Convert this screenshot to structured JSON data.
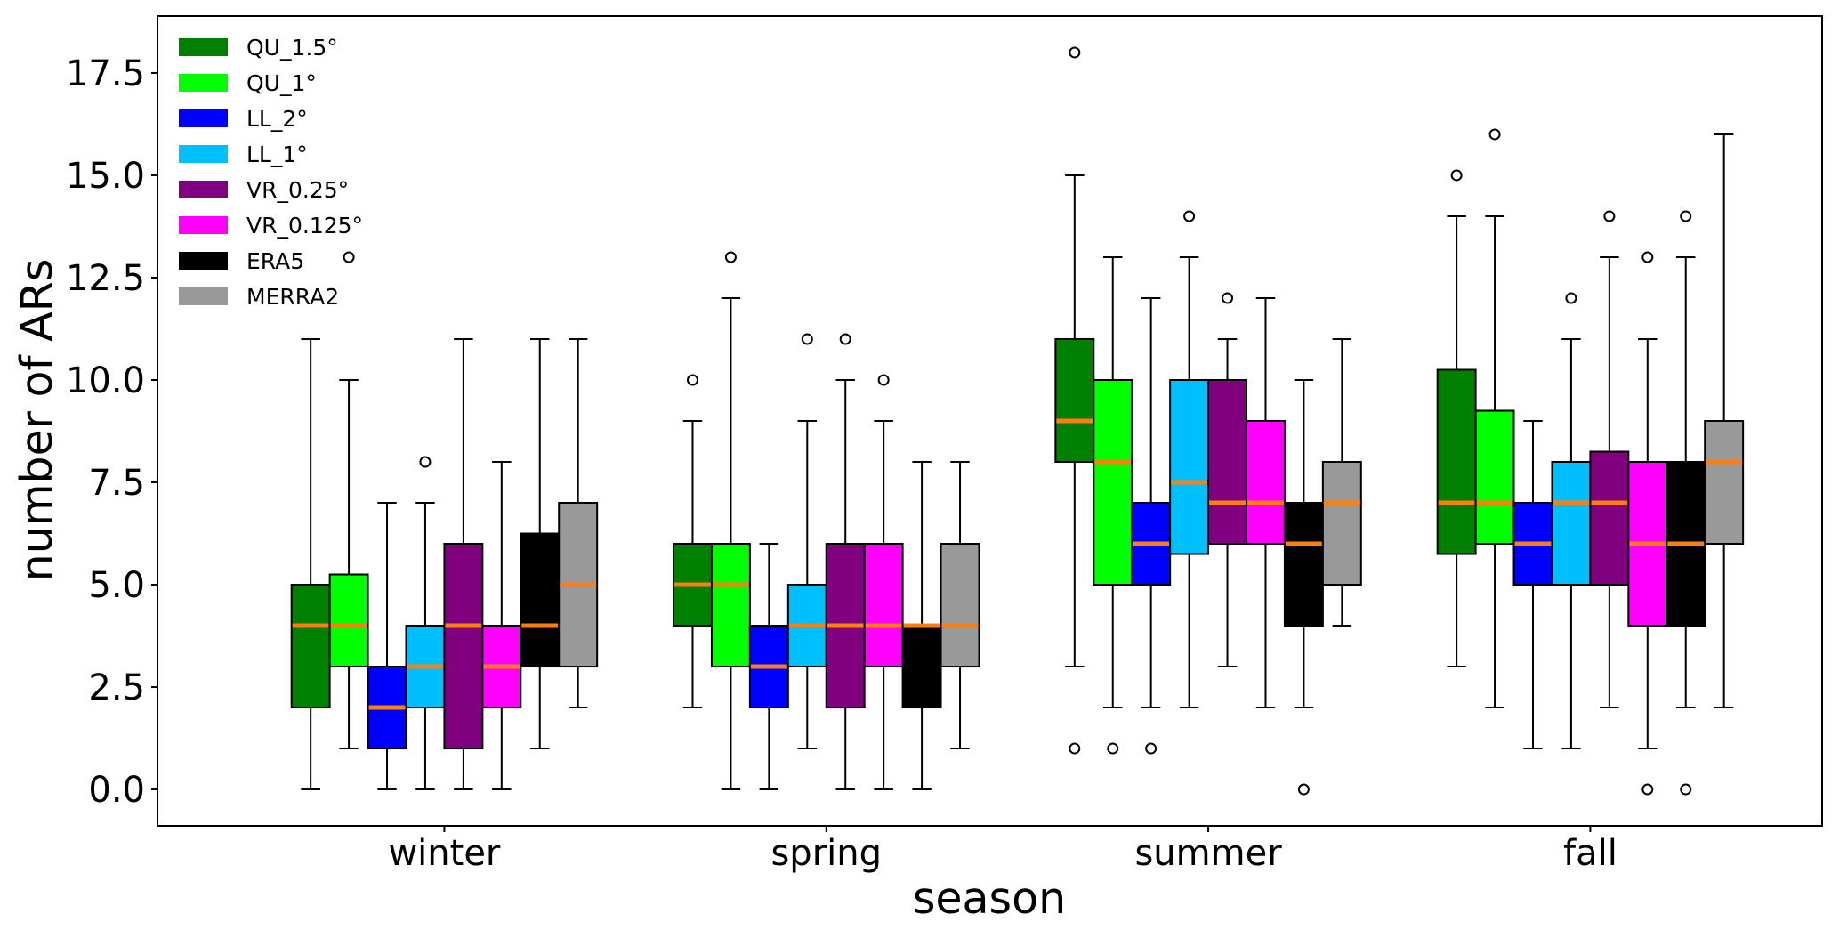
{
  "chart_data": {
    "type": "boxplot",
    "title": "",
    "xlabel": "season",
    "ylabel": "number of ARs",
    "categories": [
      "winter",
      "spring",
      "summer",
      "fall"
    ],
    "ylim": [
      -0.89,
      18.89
    ],
    "xlim": [
      -0.751,
      3.607
    ],
    "yticks": [
      0.0,
      2.5,
      5.0,
      7.5,
      10.0,
      12.5,
      15.0,
      17.5
    ],
    "ytick_labels": [
      "0.0",
      "2.5",
      "5.0",
      "7.5",
      "10.0",
      "12.5",
      "15.0",
      "17.5"
    ],
    "grid": false,
    "legend_position": "top-left",
    "median_color": "#ff7f0e",
    "series": [
      {
        "name": "QU_1.5°",
        "color": "#008000",
        "boxes": [
          {
            "whislo": 0,
            "q1": 2,
            "med": 4,
            "q3": 5,
            "whishi": 11,
            "fliers": []
          },
          {
            "whislo": 2,
            "q1": 4,
            "med": 5,
            "q3": 6,
            "whishi": 9,
            "fliers": [
              10
            ]
          },
          {
            "whislo": 3,
            "q1": 8,
            "med": 9,
            "q3": 11,
            "whishi": 15,
            "fliers": [
              18,
              1
            ]
          },
          {
            "whislo": 3,
            "q1": 5.75,
            "med": 7,
            "q3": 10.25,
            "whishi": 14,
            "fliers": [
              15
            ]
          }
        ]
      },
      {
        "name": "QU_1°",
        "color": "#00ff00",
        "boxes": [
          {
            "whislo": 1,
            "q1": 3,
            "med": 4,
            "q3": 5.25,
            "whishi": 10,
            "fliers": [
              13
            ]
          },
          {
            "whislo": 0,
            "q1": 3,
            "med": 5,
            "q3": 6,
            "whishi": 12,
            "fliers": [
              13
            ]
          },
          {
            "whislo": 2,
            "q1": 5,
            "med": 8,
            "q3": 10,
            "whishi": 13,
            "fliers": [
              1
            ]
          },
          {
            "whislo": 2,
            "q1": 6,
            "med": 7,
            "q3": 9.25,
            "whishi": 14,
            "fliers": [
              16
            ]
          }
        ]
      },
      {
        "name": "LL_2°",
        "color": "#0000ff",
        "boxes": [
          {
            "whislo": 0,
            "q1": 1,
            "med": 2,
            "q3": 3,
            "whishi": 7,
            "fliers": []
          },
          {
            "whislo": 0,
            "q1": 2,
            "med": 3,
            "q3": 4,
            "whishi": 6,
            "fliers": []
          },
          {
            "whislo": 2,
            "q1": 5,
            "med": 6,
            "q3": 7,
            "whishi": 12,
            "fliers": [
              1
            ]
          },
          {
            "whislo": 1,
            "q1": 5,
            "med": 6,
            "q3": 7,
            "whishi": 9,
            "fliers": []
          }
        ]
      },
      {
        "name": "LL_1°",
        "color": "#00bfff",
        "boxes": [
          {
            "whislo": 0,
            "q1": 2,
            "med": 3,
            "q3": 4,
            "whishi": 7,
            "fliers": [
              8
            ]
          },
          {
            "whislo": 1,
            "q1": 3,
            "med": 4,
            "q3": 5,
            "whishi": 9,
            "fliers": [
              11
            ]
          },
          {
            "whislo": 2,
            "q1": 5.75,
            "med": 7.5,
            "q3": 10,
            "whishi": 13,
            "fliers": [
              14
            ]
          },
          {
            "whislo": 1,
            "q1": 5,
            "med": 7,
            "q3": 8,
            "whishi": 11,
            "fliers": [
              12
            ]
          }
        ]
      },
      {
        "name": "VR_0.25°",
        "color": "#800080",
        "boxes": [
          {
            "whislo": 0,
            "q1": 1,
            "med": 4,
            "q3": 6,
            "whishi": 11,
            "fliers": []
          },
          {
            "whislo": 0,
            "q1": 2,
            "med": 4,
            "q3": 6,
            "whishi": 10,
            "fliers": [
              11
            ]
          },
          {
            "whislo": 3,
            "q1": 6,
            "med": 7,
            "q3": 10,
            "whishi": 11,
            "fliers": [
              12
            ]
          },
          {
            "whislo": 2,
            "q1": 5,
            "med": 7,
            "q3": 8.25,
            "whishi": 13,
            "fliers": [
              14
            ]
          }
        ]
      },
      {
        "name": "VR_0.125°",
        "color": "#ff00ff",
        "boxes": [
          {
            "whislo": 0,
            "q1": 2,
            "med": 3,
            "q3": 4,
            "whishi": 8,
            "fliers": []
          },
          {
            "whislo": 0,
            "q1": 3,
            "med": 4,
            "q3": 6,
            "whishi": 9,
            "fliers": [
              10
            ]
          },
          {
            "whislo": 2,
            "q1": 6,
            "med": 7,
            "q3": 9,
            "whishi": 12,
            "fliers": []
          },
          {
            "whislo": 1,
            "q1": 4,
            "med": 6,
            "q3": 8,
            "whishi": 11,
            "fliers": [
              13,
              0
            ]
          }
        ]
      },
      {
        "name": "ERA5",
        "color": "#000000",
        "boxes": [
          {
            "whislo": 1,
            "q1": 3,
            "med": 4,
            "q3": 6.25,
            "whishi": 11,
            "fliers": []
          },
          {
            "whislo": 0,
            "q1": 2,
            "med": 4,
            "q3": 4,
            "whishi": 8,
            "fliers": []
          },
          {
            "whislo": 2,
            "q1": 4,
            "med": 6,
            "q3": 7,
            "whishi": 10,
            "fliers": [
              0
            ]
          },
          {
            "whislo": 2,
            "q1": 4,
            "med": 6,
            "q3": 8,
            "whishi": 13,
            "fliers": [
              14,
              0
            ]
          }
        ]
      },
      {
        "name": "MERRA2",
        "color": "#999999",
        "boxes": [
          {
            "whislo": 2,
            "q1": 3,
            "med": 5,
            "q3": 7,
            "whishi": 11,
            "fliers": []
          },
          {
            "whislo": 1,
            "q1": 3,
            "med": 4,
            "q3": 6,
            "whishi": 8,
            "fliers": []
          },
          {
            "whislo": 4,
            "q1": 5,
            "med": 7,
            "q3": 8,
            "whishi": 11,
            "fliers": []
          },
          {
            "whislo": 2,
            "q1": 6,
            "med": 8,
            "q3": 9,
            "whishi": 16,
            "fliers": []
          }
        ]
      }
    ]
  }
}
